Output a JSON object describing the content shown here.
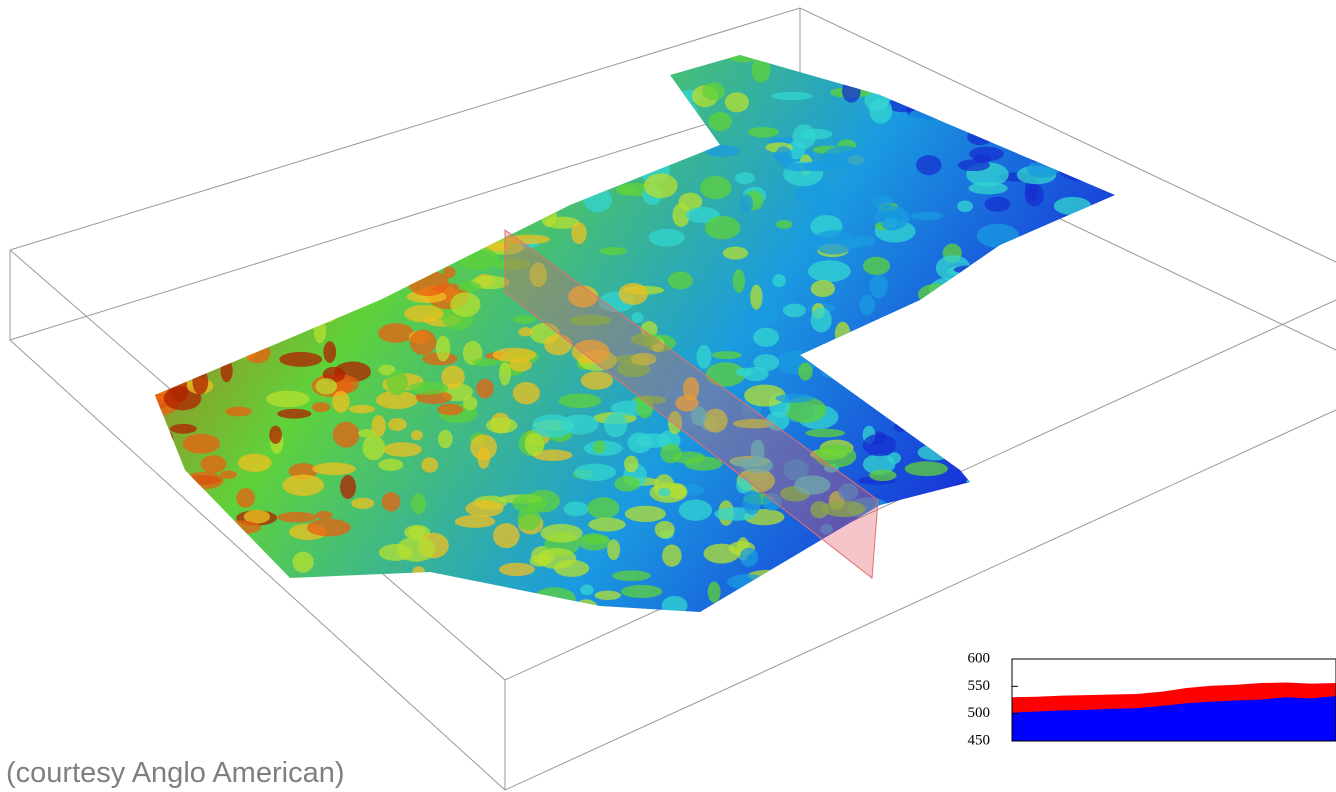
{
  "caption": "(courtesy Anglo American)",
  "chart_data": {
    "type": "area",
    "ylim": [
      450,
      600
    ],
    "yticks": [
      600,
      550,
      500,
      450
    ],
    "series": [
      {
        "color": "#ff0000",
        "values": [
          530,
          531,
          533,
          534,
          535,
          536,
          540,
          547,
          551,
          553,
          556,
          557,
          555,
          556
        ]
      },
      {
        "color": "#0000ff",
        "values": [
          502,
          504,
          506,
          507,
          509,
          510,
          514,
          519,
          522,
          524,
          526,
          530,
          528,
          532
        ]
      }
    ]
  }
}
